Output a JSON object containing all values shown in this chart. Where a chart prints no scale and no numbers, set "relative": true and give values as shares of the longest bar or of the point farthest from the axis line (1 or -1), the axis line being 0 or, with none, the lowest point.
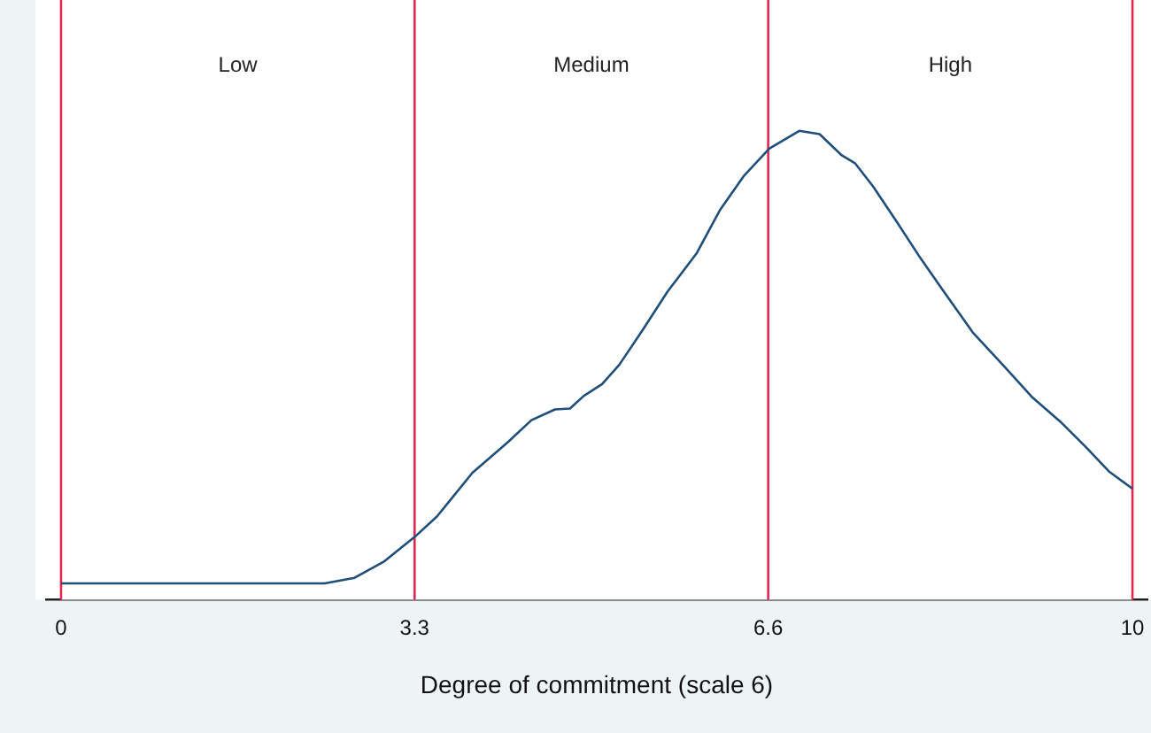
{
  "chart_data": {
    "type": "line",
    "xlabel": "Degree of commitment (scale 6)",
    "relative": true,
    "xlim": [
      -0.14,
      10.14
    ],
    "xticks": [
      0,
      3.3,
      6.6,
      10
    ],
    "series": [
      {
        "color": "#1f4e79",
        "x": [
          0,
          1.2,
          2.46,
          2.74,
          3.01,
          3.3,
          3.51,
          3.84,
          4.17,
          4.39,
          4.61,
          4.75,
          4.88,
          5.05,
          5.21,
          5.43,
          5.66,
          5.93,
          6.15,
          6.37,
          6.61,
          6.89,
          7.08,
          7.28,
          7.41,
          7.58,
          7.8,
          8.02,
          8.24,
          8.51,
          8.79,
          9.06,
          9.34,
          9.56,
          9.78,
          10
        ],
        "values": [
          0.035,
          0.035,
          0.035,
          0.047,
          0.081,
          0.134,
          0.178,
          0.271,
          0.336,
          0.383,
          0.406,
          0.408,
          0.435,
          0.46,
          0.501,
          0.576,
          0.657,
          0.738,
          0.831,
          0.903,
          0.962,
          1,
          0.993,
          0.949,
          0.931,
          0.881,
          0.806,
          0.729,
          0.657,
          0.57,
          0.501,
          0.433,
          0.377,
          0.327,
          0.274,
          0.237
        ]
      }
    ],
    "ref_lines": [
      {
        "axis": "x",
        "value": 0,
        "color": "#e0284f"
      },
      {
        "axis": "x",
        "value": 3.3,
        "color": "#e0284f"
      },
      {
        "axis": "x",
        "value": 6.6,
        "color": "#e0284f"
      },
      {
        "axis": "x",
        "value": 10,
        "color": "#e0284f"
      }
    ],
    "bands": [
      {
        "axis": "x",
        "from": 0,
        "to": 3.3,
        "label": "Low",
        "color": "#ffffff"
      },
      {
        "axis": "x",
        "from": 3.3,
        "to": 6.6,
        "label": "Medium",
        "color": "#ffffff"
      },
      {
        "axis": "x",
        "from": 6.6,
        "to": 10,
        "label": "High",
        "color": "#ffffff"
      }
    ],
    "grid": false,
    "legend": false,
    "marker": "none",
    "line_style": "solid",
    "tick_labels": "x"
  }
}
